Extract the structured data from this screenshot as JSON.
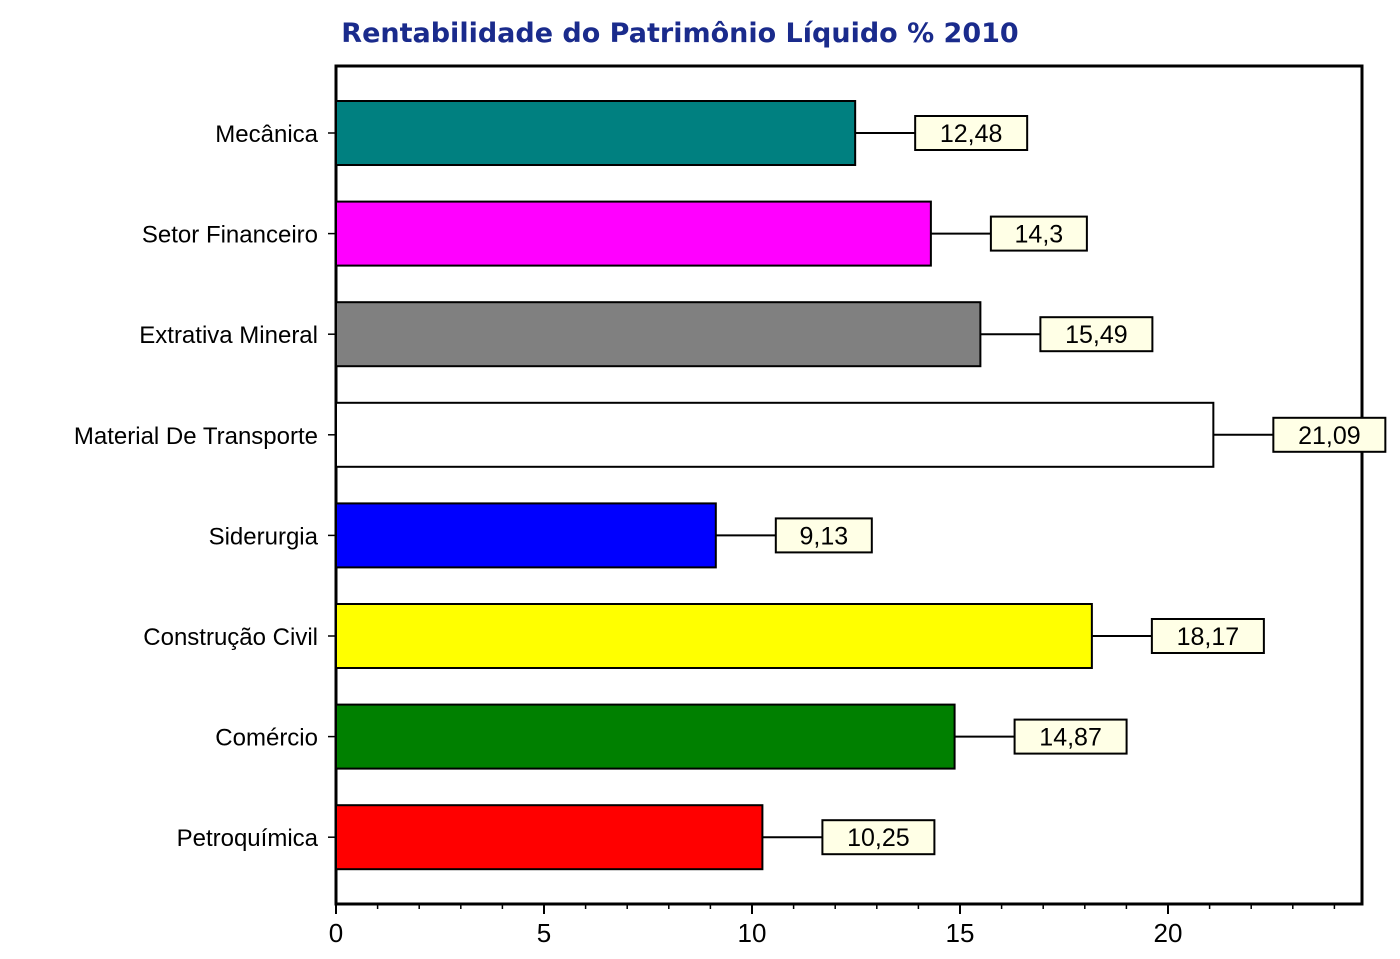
{
  "chart_data": {
    "type": "bar",
    "orientation": "horizontal",
    "title": "Rentabilidade do Patrimônio Líquido % 2010",
    "xlabel": "",
    "ylabel": "",
    "categories": [
      "Mecânica",
      "Setor Financeiro",
      "Extrativa Mineral",
      "Material De Transporte",
      "Siderurgia",
      "Construção Civil",
      "Comércio",
      "Petroquímica"
    ],
    "values": [
      12.48,
      14.3,
      15.49,
      21.09,
      9.13,
      18.17,
      14.87,
      10.25
    ],
    "value_labels": [
      "12,48",
      "14,3",
      "15,49",
      "21,09",
      "9,13",
      "18,17",
      "14,87",
      "10,25"
    ],
    "colors": [
      "#008080",
      "#ff00ff",
      "#808080",
      "#ffffff",
      "#0000ff",
      "#ffff00",
      "#008000",
      "#ff0000"
    ],
    "xlim": [
      0,
      24.7
    ],
    "x_ticks": [
      0,
      5,
      10,
      15,
      20
    ],
    "x_tick_labels": [
      "0",
      "5",
      "10",
      "15",
      "20"
    ],
    "minor_tick_step": 1,
    "grid": false,
    "legend": "none"
  }
}
